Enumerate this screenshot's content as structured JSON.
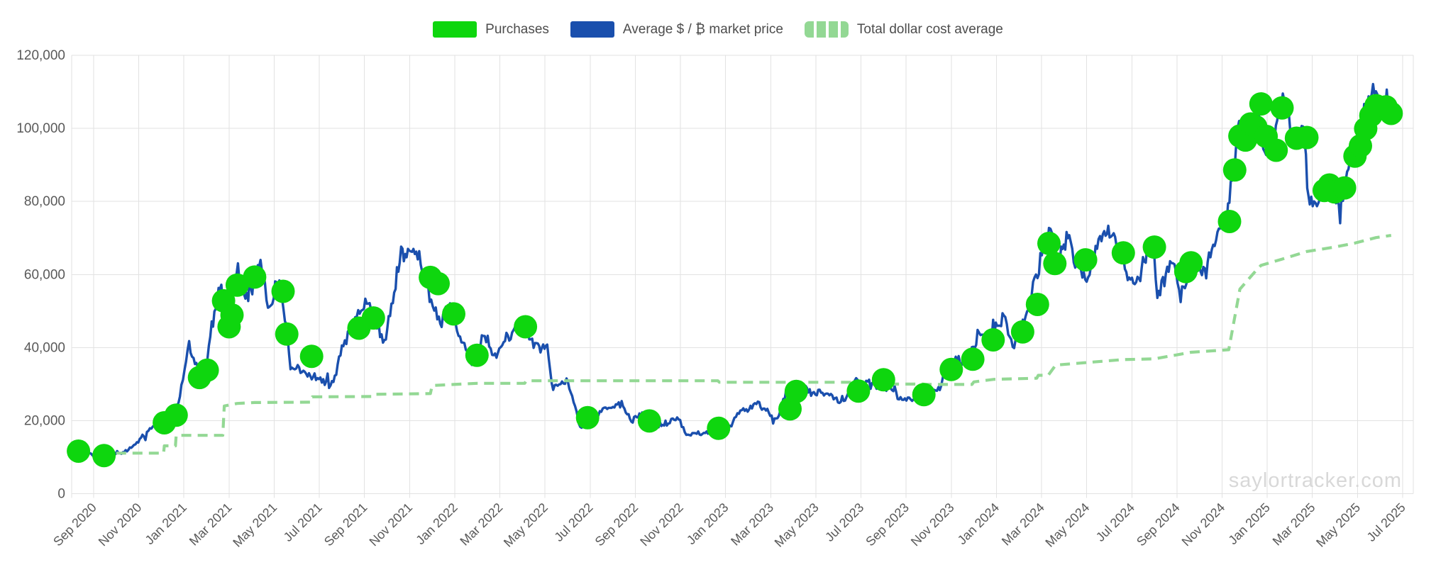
{
  "page": {
    "watermark": "saylortracker.com"
  },
  "legend": [
    {
      "label": "Purchases",
      "color": "#0ed60e",
      "swatch": "solid"
    },
    {
      "label": "Average $ / ₿ market price",
      "color": "#1a4fad",
      "swatch": "solid"
    },
    {
      "label": "Total dollar cost average",
      "color": "#93d894",
      "swatch": "dashed"
    }
  ],
  "chart_data": {
    "type": "line",
    "title": "",
    "xlabel": "",
    "ylabel": "",
    "grid": true,
    "legend_position": "top-center",
    "colors": {
      "purchases": "#0ed60e",
      "market_price": "#1a4fad",
      "dca": "#93d894",
      "gridline": "#e2e2e2",
      "axis_text": "#595959"
    },
    "y_axis": {
      "min": 0,
      "max": 120000,
      "tick_step": 20000,
      "tick_labels": [
        "0",
        "20,000",
        "40,000",
        "60,000",
        "80,000",
        "100,000",
        "120,000"
      ]
    },
    "x_axis": {
      "start": "2020-08-05",
      "end": "2025-07-01",
      "tick_labels": [
        "Sep 2020",
        "Nov 2020",
        "Jan 2021",
        "Mar 2021",
        "May 2021",
        "Jul 2021",
        "Sep 2021",
        "Nov 2021",
        "Jan 2022",
        "Mar 2022",
        "May 2022",
        "Jul 2022",
        "Sep 2022",
        "Nov 2022",
        "Jan 2023",
        "Mar 2023",
        "May 2023",
        "Jul 2023",
        "Sep 2023",
        "Nov 2023",
        "Jan 2024",
        "Mar 2024",
        "May 2024",
        "Jul 2024",
        "Sep 2024",
        "Nov 2024",
        "Jan 2025",
        "Mar 2025",
        "May 2025",
        "Jul 2025"
      ]
    },
    "series": {
      "purchases": {
        "name": "Purchases",
        "type": "scatter",
        "points": [
          [
            "2020-08-11",
            11650
          ],
          [
            "2020-09-15",
            10420
          ],
          [
            "2020-12-05",
            19400
          ],
          [
            "2020-12-21",
            21500
          ],
          [
            "2021-01-22",
            31800
          ],
          [
            "2021-02-02",
            33800
          ],
          [
            "2021-02-24",
            52800
          ],
          [
            "2021-03-01",
            45700
          ],
          [
            "2021-03-05",
            48900
          ],
          [
            "2021-03-12",
            57100
          ],
          [
            "2021-04-05",
            59300
          ],
          [
            "2021-05-13",
            55400
          ],
          [
            "2021-05-18",
            43700
          ],
          [
            "2021-06-21",
            37600
          ],
          [
            "2021-08-24",
            45300
          ],
          [
            "2021-09-13",
            48100
          ],
          [
            "2021-11-29",
            59200
          ],
          [
            "2021-12-09",
            57500
          ],
          [
            "2021-12-30",
            49200
          ],
          [
            "2022-01-31",
            37900
          ],
          [
            "2022-04-05",
            45700
          ],
          [
            "2022-06-28",
            20800
          ],
          [
            "2022-09-20",
            19900
          ],
          [
            "2022-12-22",
            17900
          ],
          [
            "2023-03-27",
            23200
          ],
          [
            "2023-04-05",
            28000
          ],
          [
            "2023-06-28",
            28100
          ],
          [
            "2023-08-01",
            31200
          ],
          [
            "2023-09-25",
            27100
          ],
          [
            "2023-11-01",
            34000
          ],
          [
            "2023-11-30",
            36800
          ],
          [
            "2023-12-27",
            42100
          ],
          [
            "2024-02-06",
            44300
          ],
          [
            "2024-02-26",
            51800
          ],
          [
            "2024-03-11",
            68500
          ],
          [
            "2024-03-19",
            63000
          ],
          [
            "2024-04-30",
            64000
          ],
          [
            "2024-06-20",
            65900
          ],
          [
            "2024-08-01",
            67500
          ],
          [
            "2024-09-13",
            60800
          ],
          [
            "2024-09-20",
            63200
          ],
          [
            "2024-11-11",
            74500
          ],
          [
            "2024-11-18",
            88600
          ],
          [
            "2024-11-25",
            97900
          ],
          [
            "2024-12-02",
            96800
          ],
          [
            "2024-12-09",
            101200
          ],
          [
            "2024-12-16",
            100400
          ],
          [
            "2024-12-23",
            106700
          ],
          [
            "2024-12-30",
            97800
          ],
          [
            "2025-01-13",
            94000
          ],
          [
            "2025-01-21",
            105600
          ],
          [
            "2025-02-10",
            97300
          ],
          [
            "2025-02-24",
            97500
          ],
          [
            "2025-03-17",
            83000
          ],
          [
            "2025-03-24",
            84500
          ],
          [
            "2025-03-31",
            82600
          ],
          [
            "2025-04-14",
            83700
          ],
          [
            "2025-04-28",
            92400
          ],
          [
            "2025-05-05",
            95200
          ],
          [
            "2025-05-12",
            99900
          ],
          [
            "2025-05-19",
            103500
          ],
          [
            "2025-05-26",
            106200
          ],
          [
            "2025-06-09",
            105900
          ],
          [
            "2025-06-16",
            104100
          ]
        ]
      },
      "market_price": {
        "name": "Average $ / ₿ market price",
        "type": "line",
        "points": [
          [
            "2020-08-05",
            11400
          ],
          [
            "2020-08-20",
            11900
          ],
          [
            "2020-09-05",
            10250
          ],
          [
            "2020-09-25",
            10750
          ],
          [
            "2020-10-10",
            11400
          ],
          [
            "2020-10-25",
            13100
          ],
          [
            "2020-11-06",
            15500
          ],
          [
            "2020-11-24",
            19150
          ],
          [
            "2020-12-11",
            18100
          ],
          [
            "2020-12-26",
            26400
          ],
          [
            "2021-01-08",
            40800
          ],
          [
            "2021-01-14",
            36800
          ],
          [
            "2021-01-27",
            30500
          ],
          [
            "2021-02-08",
            46400
          ],
          [
            "2021-02-21",
            57300
          ],
          [
            "2021-02-28",
            45200
          ],
          [
            "2021-03-13",
            61200
          ],
          [
            "2021-03-25",
            51500
          ],
          [
            "2021-04-13",
            64500
          ],
          [
            "2021-04-25",
            49300
          ],
          [
            "2021-05-08",
            58800
          ],
          [
            "2021-05-23",
            34800
          ],
          [
            "2021-06-08",
            33500
          ],
          [
            "2021-06-25",
            31500
          ],
          [
            "2021-07-20",
            29700
          ],
          [
            "2021-08-01",
            39900
          ],
          [
            "2021-08-23",
            49300
          ],
          [
            "2021-09-06",
            52600
          ],
          [
            "2021-09-28",
            41100
          ],
          [
            "2021-10-20",
            66000
          ],
          [
            "2021-11-08",
            67600
          ],
          [
            "2021-11-28",
            54700
          ],
          [
            "2021-12-10",
            47200
          ],
          [
            "2021-12-27",
            50800
          ],
          [
            "2022-01-10",
            41800
          ],
          [
            "2022-01-24",
            35100
          ],
          [
            "2022-02-09",
            44100
          ],
          [
            "2022-02-23",
            37800
          ],
          [
            "2022-03-29",
            47500
          ],
          [
            "2022-04-18",
            40600
          ],
          [
            "2022-05-04",
            39800
          ],
          [
            "2022-05-12",
            28300
          ],
          [
            "2022-05-30",
            31700
          ],
          [
            "2022-06-13",
            22500
          ],
          [
            "2022-06-18",
            18300
          ],
          [
            "2022-07-02",
            19200
          ],
          [
            "2022-07-20",
            23300
          ],
          [
            "2022-08-13",
            24400
          ],
          [
            "2022-08-28",
            20000
          ],
          [
            "2022-09-12",
            22300
          ],
          [
            "2022-09-25",
            18900
          ],
          [
            "2022-10-15",
            19200
          ],
          [
            "2022-10-29",
            20800
          ],
          [
            "2022-11-09",
            16000
          ],
          [
            "2022-11-25",
            16500
          ],
          [
            "2022-12-17",
            16700
          ],
          [
            "2023-01-01",
            16600
          ],
          [
            "2023-01-21",
            22800
          ],
          [
            "2023-02-16",
            24600
          ],
          [
            "2023-02-25",
            23000
          ],
          [
            "2023-03-10",
            20200
          ],
          [
            "2023-03-22",
            28200
          ],
          [
            "2023-04-14",
            30500
          ],
          [
            "2023-04-25",
            27300
          ],
          [
            "2023-05-10",
            27700
          ],
          [
            "2023-05-25",
            26200
          ],
          [
            "2023-06-10",
            25800
          ],
          [
            "2023-06-21",
            30000
          ],
          [
            "2023-07-06",
            31200
          ],
          [
            "2023-07-24",
            29200
          ],
          [
            "2023-08-16",
            28900
          ],
          [
            "2023-08-22",
            26050
          ],
          [
            "2023-09-11",
            25200
          ],
          [
            "2023-09-19",
            27200
          ],
          [
            "2023-10-01",
            26950
          ],
          [
            "2023-10-16",
            28500
          ],
          [
            "2023-10-24",
            34200
          ],
          [
            "2023-11-09",
            36800
          ],
          [
            "2023-11-21",
            35800
          ],
          [
            "2023-12-08",
            44300
          ],
          [
            "2023-12-18",
            41500
          ],
          [
            "2024-01-02",
            45200
          ],
          [
            "2024-01-11",
            48400
          ],
          [
            "2024-01-23",
            39900
          ],
          [
            "2024-02-12",
            49900
          ],
          [
            "2024-02-28",
            62400
          ],
          [
            "2024-03-13",
            73500
          ],
          [
            "2024-03-20",
            63600
          ],
          [
            "2024-04-08",
            71500
          ],
          [
            "2024-04-18",
            61500
          ],
          [
            "2024-05-01",
            58200
          ],
          [
            "2024-05-21",
            71300
          ],
          [
            "2024-06-07",
            71100
          ],
          [
            "2024-06-24",
            60100
          ],
          [
            "2024-07-05",
            56600
          ],
          [
            "2024-07-29",
            69800
          ],
          [
            "2024-08-05",
            53500
          ],
          [
            "2024-08-26",
            64300
          ],
          [
            "2024-09-06",
            54200
          ],
          [
            "2024-09-27",
            65700
          ],
          [
            "2024-10-10",
            60400
          ],
          [
            "2024-10-29",
            72700
          ],
          [
            "2024-11-09",
            76500
          ],
          [
            "2024-11-22",
            99000
          ],
          [
            "2024-12-05",
            102700
          ],
          [
            "2024-12-10",
            96800
          ],
          [
            "2024-12-17",
            106300
          ],
          [
            "2024-12-30",
            92500
          ],
          [
            "2025-01-09",
            94800
          ],
          [
            "2025-01-20",
            108900
          ],
          [
            "2025-01-30",
            104700
          ],
          [
            "2025-02-03",
            97700
          ],
          [
            "2025-02-21",
            98300
          ],
          [
            "2025-02-28",
            79000
          ],
          [
            "2025-03-13",
            80800
          ],
          [
            "2025-03-24",
            87600
          ],
          [
            "2025-04-08",
            76400
          ],
          [
            "2025-04-23",
            93400
          ],
          [
            "2025-05-01",
            96500
          ],
          [
            "2025-05-10",
            104100
          ],
          [
            "2025-05-22",
            111600
          ],
          [
            "2025-06-05",
            101700
          ],
          [
            "2025-06-10",
            110100
          ],
          [
            "2025-06-16",
            105200
          ],
          [
            "2025-06-20",
            103600
          ]
        ]
      },
      "dca": {
        "name": "Total dollar cost average",
        "type": "line",
        "style": "dashed",
        "points": [
          [
            "2020-10-01",
            11100
          ],
          [
            "2020-12-04",
            11100
          ],
          [
            "2020-12-05",
            13100
          ],
          [
            "2020-12-20",
            13100
          ],
          [
            "2020-12-21",
            15960
          ],
          [
            "2021-02-23",
            15960
          ],
          [
            "2021-02-25",
            24000
          ],
          [
            "2021-03-12",
            24700
          ],
          [
            "2021-04-05",
            24950
          ],
          [
            "2021-06-20",
            25050
          ],
          [
            "2021-06-22",
            26500
          ],
          [
            "2021-09-12",
            26600
          ],
          [
            "2021-09-14",
            27200
          ],
          [
            "2021-11-29",
            27400
          ],
          [
            "2021-12-01",
            29600
          ],
          [
            "2021-12-30",
            29900
          ],
          [
            "2022-01-31",
            30200
          ],
          [
            "2022-04-04",
            30200
          ],
          [
            "2022-04-06",
            30900
          ],
          [
            "2022-12-21",
            30900
          ],
          [
            "2022-12-23",
            30500
          ],
          [
            "2023-06-27",
            30500
          ],
          [
            "2023-06-29",
            30000
          ],
          [
            "2023-09-24",
            30000
          ],
          [
            "2023-09-26",
            29900
          ],
          [
            "2023-11-29",
            29900
          ],
          [
            "2023-12-01",
            30600
          ],
          [
            "2023-12-28",
            31300
          ],
          [
            "2024-02-25",
            31600
          ],
          [
            "2024-02-27",
            32400
          ],
          [
            "2024-03-10",
            32400
          ],
          [
            "2024-03-20",
            35200
          ],
          [
            "2024-06-20",
            36700
          ],
          [
            "2024-08-01",
            36900
          ],
          [
            "2024-09-20",
            38700
          ],
          [
            "2024-11-10",
            39400
          ],
          [
            "2024-11-25",
            56000
          ],
          [
            "2024-12-16",
            61000
          ],
          [
            "2024-12-23",
            62500
          ],
          [
            "2025-01-21",
            64200
          ],
          [
            "2025-02-24",
            66300
          ],
          [
            "2025-03-31",
            67500
          ],
          [
            "2025-04-28",
            68600
          ],
          [
            "2025-05-26",
            70100
          ],
          [
            "2025-06-16",
            70700
          ]
        ]
      }
    },
    "watermark": "saylortracker.com"
  }
}
